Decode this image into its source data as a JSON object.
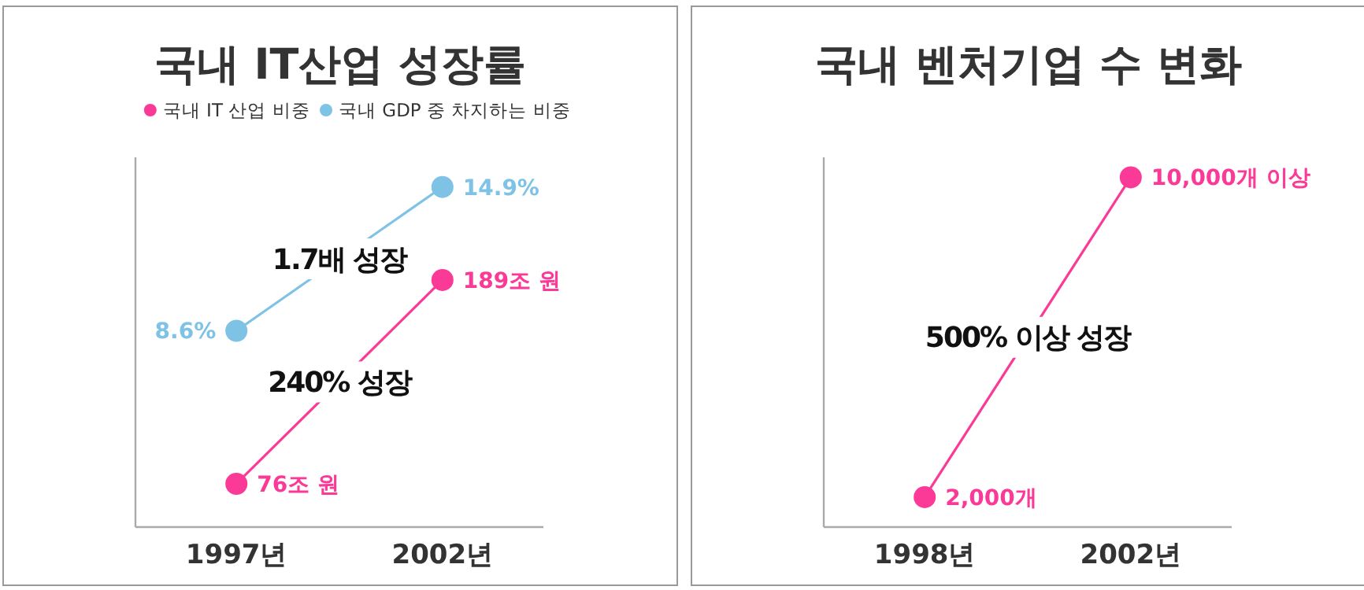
{
  "chart_data": [
    {
      "type": "line",
      "title": "국내 IT산업 성장률",
      "categories": [
        "1997년",
        "2002년"
      ],
      "legend": "top",
      "marker": "circle",
      "tick_labels": "x",
      "ylim": [
        52,
        257
      ],
      "y2lim": [
        0,
        16.2
      ],
      "series": [
        {
          "name": "국내 IT 산업 비중",
          "color": "#fb3a98",
          "values": [
            76,
            189
          ],
          "value_labels": [
            "76조 원",
            "189조 원"
          ]
        },
        {
          "name": "국내 GDP 중 차지하는 비중",
          "color": "#7ec3e6",
          "axis": "y2",
          "values": [
            8.6,
            14.9
          ],
          "value_labels": [
            "8.6%",
            "14.9%"
          ]
        }
      ],
      "annotations": [
        "240% 성장",
        "1.7배 성장"
      ]
    },
    {
      "type": "line",
      "title": "국내 벤처기업 수 변화",
      "categories": [
        "1998년",
        "2002년"
      ],
      "marker": "circle",
      "tick_labels": "x",
      "ylim": [
        1250,
        10500
      ],
      "series": [
        {
          "color": "#fb3a98",
          "values": [
            2000,
            10000
          ],
          "value_labels": [
            "2,000개",
            "10,000개 이상"
          ]
        }
      ],
      "annotations": [
        "500% 이상 성장"
      ]
    }
  ]
}
